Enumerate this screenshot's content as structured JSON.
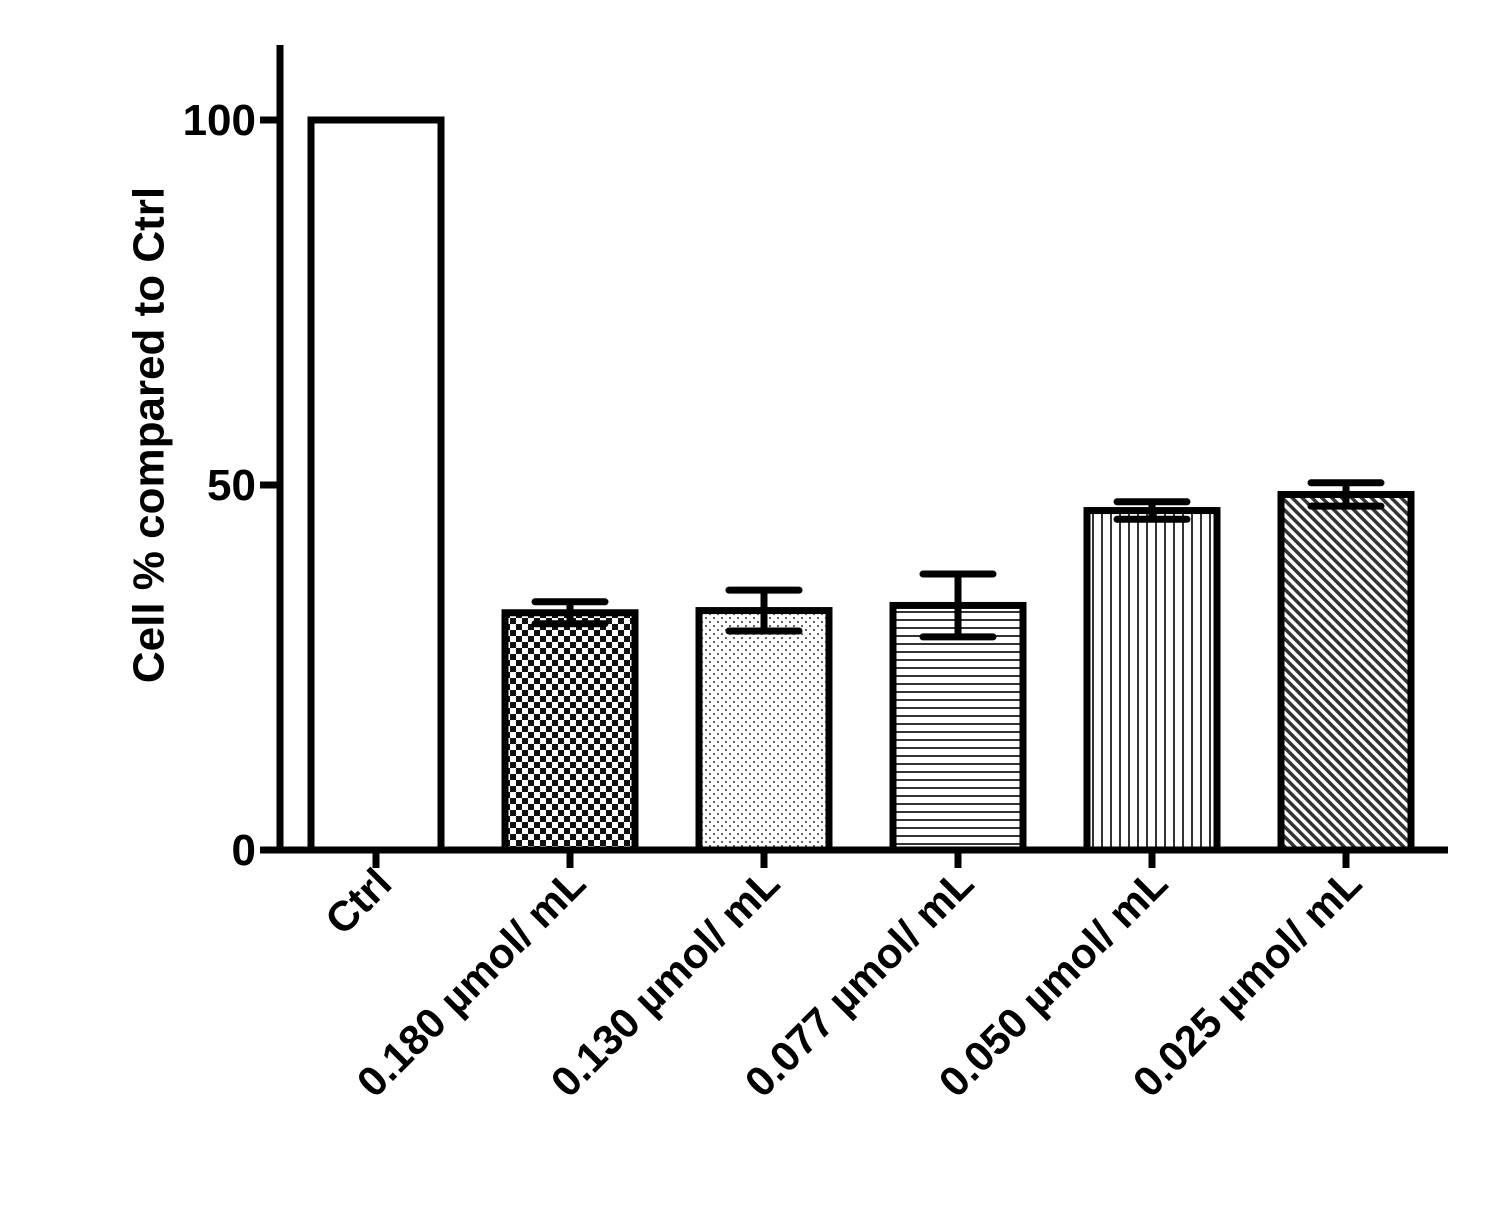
{
  "chart_data": {
    "type": "bar",
    "title": "",
    "xlabel": "",
    "ylabel": "Cell % compared to Ctrl",
    "ylim": [
      0,
      110
    ],
    "yticks": [
      0,
      50,
      100
    ],
    "grid": false,
    "legend": "none",
    "categories": [
      "Ctrl",
      "0.180 µmol/ mL",
      "0.130 µmol/ mL",
      "0.077 µmol/ mL",
      "0.050 µmol/ mL",
      "0.025 µmol/ mL"
    ],
    "values": [
      100,
      32.5,
      32.8,
      33.5,
      46.5,
      48.7
    ],
    "errors": [
      0,
      1.5,
      2.8,
      4.3,
      1.2,
      1.6
    ],
    "patterns": [
      "solid-white",
      "checkerboard",
      "dots",
      "horizontal-lines",
      "vertical-lines",
      "diagonal-lines"
    ],
    "colors": {
      "stroke": "#000000",
      "fill": "#ffffff"
    }
  }
}
